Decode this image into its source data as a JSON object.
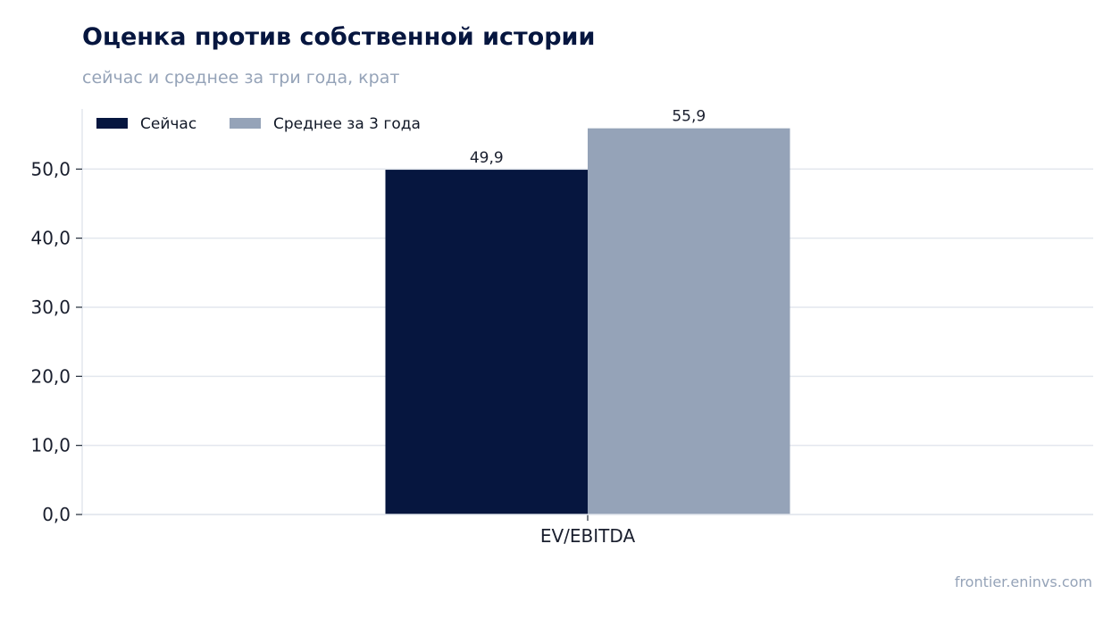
{
  "title": "Оценка против собственной истории",
  "subtitle": "сейчас и среднее за три года, крат",
  "source": "frontier.eninvs.com",
  "chart_data": {
    "type": "bar",
    "title": "Оценка против собственной истории",
    "subtitle": "сейчас и среднее за три года, крат",
    "categories": [
      "EV/EBITDA"
    ],
    "series": [
      {
        "name": "Сейчас",
        "values": [
          49.9
        ],
        "labels": [
          "49,9"
        ],
        "color": "#06163f"
      },
      {
        "name": "Среднее за 3 года",
        "values": [
          55.9
        ],
        "labels": [
          "55,9"
        ],
        "color": "#95a3b8"
      }
    ],
    "yticks": [
      {
        "value": 0,
        "label": "0,0"
      },
      {
        "value": 10,
        "label": "10,0"
      },
      {
        "value": 20,
        "label": "20,0"
      },
      {
        "value": 30,
        "label": "30,0"
      },
      {
        "value": 40,
        "label": "40,0"
      },
      {
        "value": 50,
        "label": "50,0"
      }
    ],
    "ylim": [
      0,
      58.7
    ],
    "grid": true,
    "legend": "top-left",
    "grid_color": "#e3e7ee",
    "axis_color": "#1f2937"
  }
}
